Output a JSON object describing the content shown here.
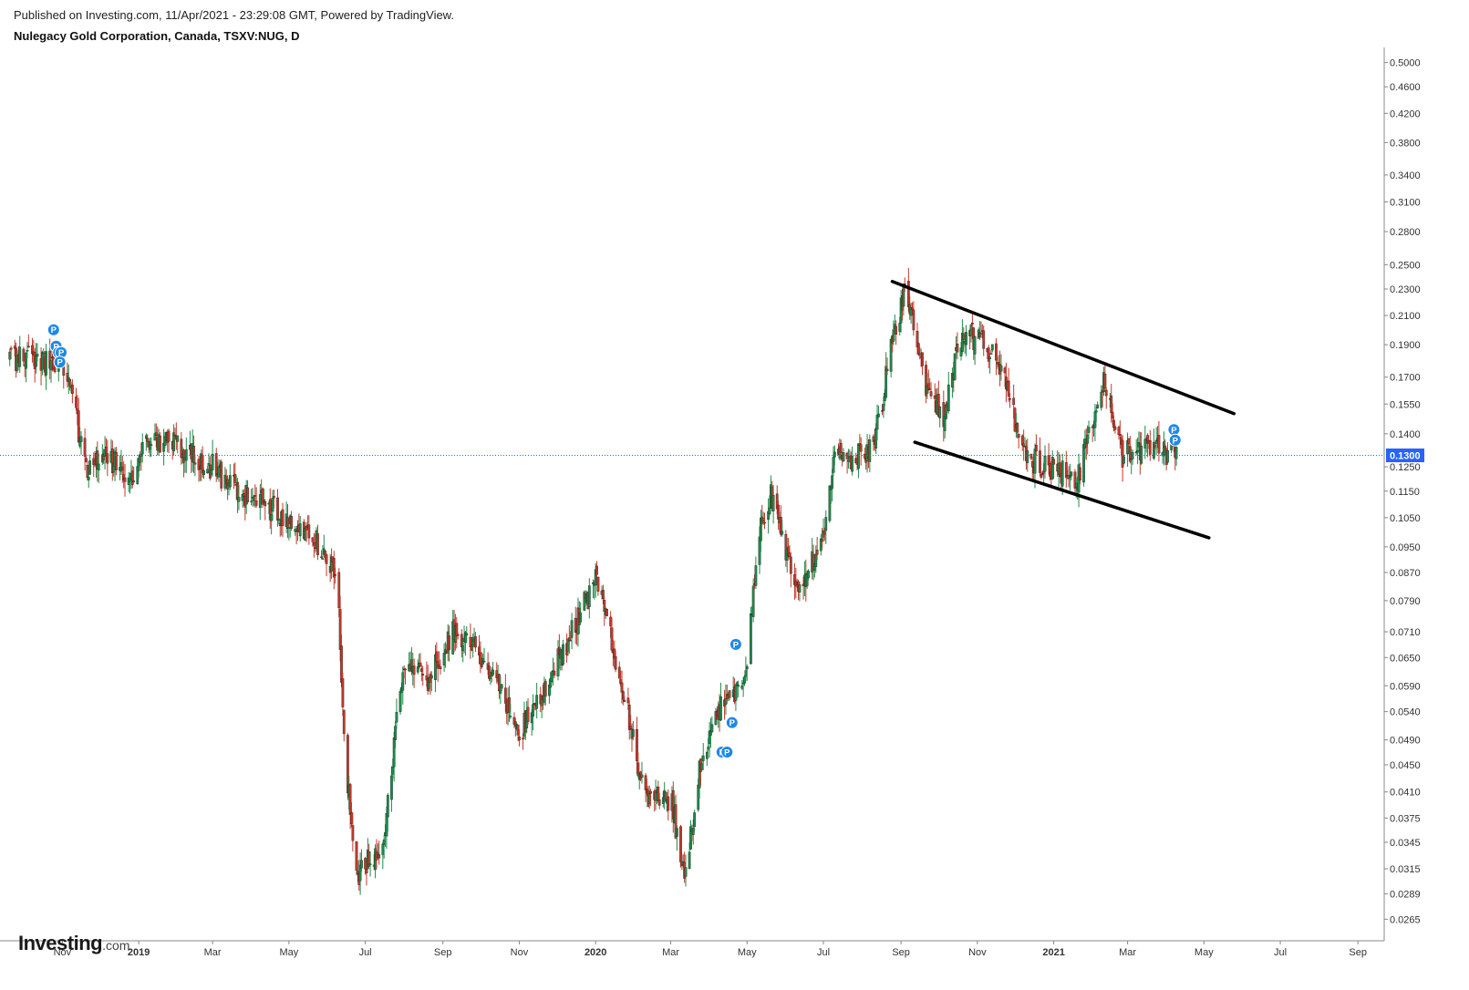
{
  "header": {
    "published": "Published on Investing.com, 11/Apr/2021 - 23:29:08 GMT, Powered by TradingView.",
    "title": "Nulegacy Gold Corporation, Canada, TSXV:NUG, D"
  },
  "logo": {
    "main": "Investing",
    "suffix": ".com"
  },
  "colors": {
    "up": "#1f8a4c",
    "down": "#c0392b",
    "price_line": "#2962ff",
    "price_label_bg": "#2962ff",
    "marker": "#1e88e5",
    "trendline": "#000000",
    "axis_text": "#333333"
  },
  "chart_data": {
    "type": "bar",
    "style": "ohlc-bars",
    "scale": "log",
    "ylim": [
      0.025,
      0.52
    ],
    "current_price": 0.13,
    "current_price_label": "0.1300",
    "y_ticks": [
      "0.5000",
      "0.4600",
      "0.4200",
      "0.3800",
      "0.3400",
      "0.3100",
      "0.2800",
      "0.2500",
      "0.2300",
      "0.2100",
      "0.1900",
      "0.1700",
      "0.1550",
      "0.1400",
      "0.1250",
      "0.1150",
      "0.1050",
      "0.0950",
      "0.0870",
      "0.0790",
      "0.0710",
      "0.0650",
      "0.0590",
      "0.0540",
      "0.0490",
      "0.0450",
      "0.0410",
      "0.0375",
      "0.0345",
      "0.0315",
      "0.0289",
      "0.0265"
    ],
    "x_ticks": [
      {
        "label": "Nov",
        "date": "2018-11-01",
        "bold": false
      },
      {
        "label": "2019",
        "date": "2019-01-01",
        "bold": true
      },
      {
        "label": "Mar",
        "date": "2019-03-01",
        "bold": false
      },
      {
        "label": "May",
        "date": "2019-05-01",
        "bold": false
      },
      {
        "label": "Jul",
        "date": "2019-07-01",
        "bold": false
      },
      {
        "label": "Sep",
        "date": "2019-09-01",
        "bold": false
      },
      {
        "label": "Nov",
        "date": "2019-11-01",
        "bold": false
      },
      {
        "label": "2020",
        "date": "2020-01-01",
        "bold": true
      },
      {
        "label": "Mar",
        "date": "2020-03-01",
        "bold": false
      },
      {
        "label": "May",
        "date": "2020-05-01",
        "bold": false
      },
      {
        "label": "Jul",
        "date": "2020-07-01",
        "bold": false
      },
      {
        "label": "Sep",
        "date": "2020-09-01",
        "bold": false
      },
      {
        "label": "Nov",
        "date": "2020-11-01",
        "bold": false
      },
      {
        "label": "2021",
        "date": "2021-01-01",
        "bold": true
      },
      {
        "label": "Mar",
        "date": "2021-03-01",
        "bold": false
      },
      {
        "label": "May",
        "date": "2021-05-01",
        "bold": false
      },
      {
        "label": "Jul",
        "date": "2021-07-01",
        "bold": false
      },
      {
        "label": "Sep",
        "date": "2021-09-01",
        "bold": false
      }
    ],
    "price_path": [
      [
        "2018-09-20",
        0.18
      ],
      [
        "2018-10-10",
        0.182
      ],
      [
        "2018-10-25",
        0.18
      ],
      [
        "2018-11-05",
        0.172
      ],
      [
        "2018-11-20",
        0.125
      ],
      [
        "2018-12-10",
        0.128
      ],
      [
        "2018-12-28",
        0.12
      ],
      [
        "2019-01-05",
        0.14
      ],
      [
        "2019-02-10",
        0.132
      ],
      [
        "2019-03-01",
        0.125
      ],
      [
        "2019-03-20",
        0.115
      ],
      [
        "2019-04-20",
        0.108
      ],
      [
        "2019-05-20",
        0.098
      ],
      [
        "2019-06-05",
        0.09
      ],
      [
        "2019-06-10",
        0.075
      ],
      [
        "2019-06-15",
        0.045
      ],
      [
        "2019-06-25",
        0.031
      ],
      [
        "2019-07-15",
        0.034
      ],
      [
        "2019-08-01",
        0.065
      ],
      [
        "2019-08-20",
        0.06
      ],
      [
        "2019-09-10",
        0.072
      ],
      [
        "2019-10-10",
        0.062
      ],
      [
        "2019-11-01",
        0.05
      ],
      [
        "2019-12-05",
        0.066
      ],
      [
        "2020-01-01",
        0.085
      ],
      [
        "2020-01-20",
        0.062
      ],
      [
        "2020-02-10",
        0.04
      ],
      [
        "2020-03-01",
        0.04
      ],
      [
        "2020-03-12",
        0.031
      ],
      [
        "2020-03-25",
        0.045
      ],
      [
        "2020-04-10",
        0.055
      ],
      [
        "2020-04-30",
        0.06
      ],
      [
        "2020-05-10",
        0.1
      ],
      [
        "2020-05-20",
        0.115
      ],
      [
        "2020-06-10",
        0.082
      ],
      [
        "2020-06-30",
        0.095
      ],
      [
        "2020-07-10",
        0.13
      ],
      [
        "2020-07-25",
        0.128
      ],
      [
        "2020-08-10",
        0.135
      ],
      [
        "2020-08-25",
        0.19
      ],
      [
        "2020-09-05",
        0.23
      ],
      [
        "2020-09-20",
        0.165
      ],
      [
        "2020-10-05",
        0.15
      ],
      [
        "2020-10-20",
        0.2
      ],
      [
        "2020-11-15",
        0.185
      ],
      [
        "2020-12-10",
        0.13
      ],
      [
        "2020-12-25",
        0.125
      ],
      [
        "2021-01-20",
        0.12
      ],
      [
        "2021-02-10",
        0.17
      ],
      [
        "2021-02-25",
        0.13
      ],
      [
        "2021-03-15",
        0.135
      ],
      [
        "2021-04-09",
        0.13
      ]
    ],
    "markers": [
      {
        "date": "2018-10-25",
        "price": 0.2,
        "label": "P"
      },
      {
        "date": "2018-10-27",
        "price": 0.189,
        "label": "P"
      },
      {
        "date": "2018-10-29",
        "price": 0.185,
        "label": "P"
      },
      {
        "date": "2018-10-31",
        "price": 0.185,
        "label": "P"
      },
      {
        "date": "2018-10-30",
        "price": 0.179,
        "label": "P"
      },
      {
        "date": "2020-04-11",
        "price": 0.047,
        "label": "P"
      },
      {
        "date": "2020-04-15",
        "price": 0.047,
        "label": "P"
      },
      {
        "date": "2020-04-19",
        "price": 0.052,
        "label": "P"
      },
      {
        "date": "2020-04-22",
        "price": 0.068,
        "label": "P"
      },
      {
        "date": "2021-04-07",
        "price": 0.142,
        "label": "P"
      },
      {
        "date": "2021-04-08",
        "price": 0.137,
        "label": "P"
      }
    ],
    "trendlines": [
      {
        "start": {
          "date": "2020-08-25",
          "price": 0.236
        },
        "end": {
          "date": "2021-05-25",
          "price": 0.15
        }
      },
      {
        "start": {
          "date": "2020-09-12",
          "price": 0.136
        },
        "end": {
          "date": "2021-05-05",
          "price": 0.098
        }
      }
    ]
  }
}
